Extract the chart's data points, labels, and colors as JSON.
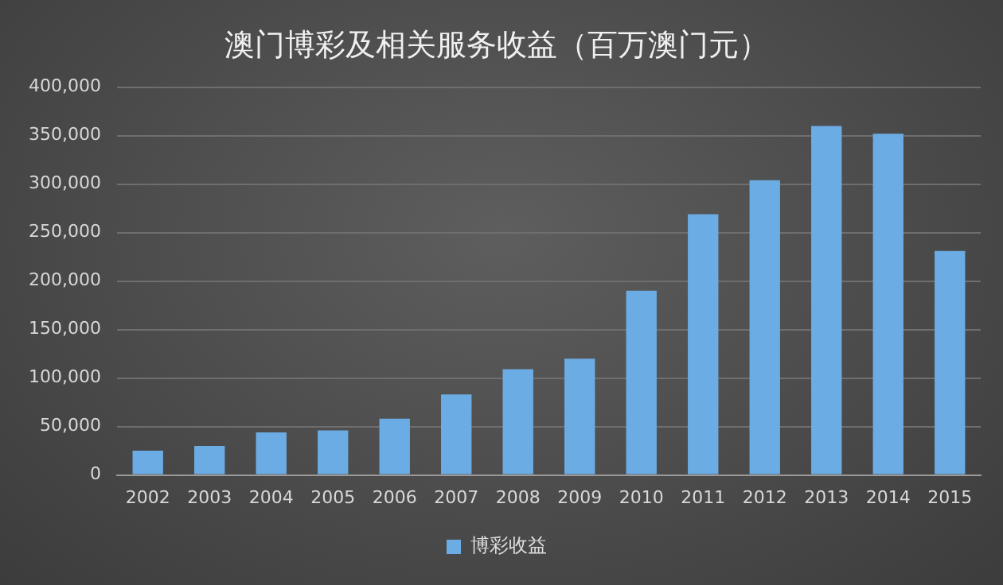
{
  "chart_data": {
    "type": "bar",
    "title": "澳门博彩及相关服务收益（百万澳门元）",
    "categories": [
      "2002",
      "2003",
      "2004",
      "2005",
      "2006",
      "2007",
      "2008",
      "2009",
      "2010",
      "2011",
      "2012",
      "2013",
      "2014",
      "2015"
    ],
    "series": [
      {
        "name": "博彩收益",
        "color": "#6cace4",
        "values": [
          25000,
          30000,
          44000,
          46000,
          58000,
          83000,
          109000,
          120000,
          190000,
          269000,
          304000,
          360000,
          352000,
          231000
        ]
      }
    ],
    "ylim": [
      0,
      400000
    ],
    "yticks": [
      {
        "value": 0,
        "label": "0"
      },
      {
        "value": 50000,
        "label": "50,000"
      },
      {
        "value": 100000,
        "label": "100,000"
      },
      {
        "value": 150000,
        "label": "150,000"
      },
      {
        "value": 200000,
        "label": "200,000"
      },
      {
        "value": 250000,
        "label": "250,000"
      },
      {
        "value": 300000,
        "label": "300,000"
      },
      {
        "value": 350000,
        "label": "350,000"
      },
      {
        "value": 400000,
        "label": "400,000"
      }
    ],
    "grid": "y",
    "legend": "bottom"
  }
}
